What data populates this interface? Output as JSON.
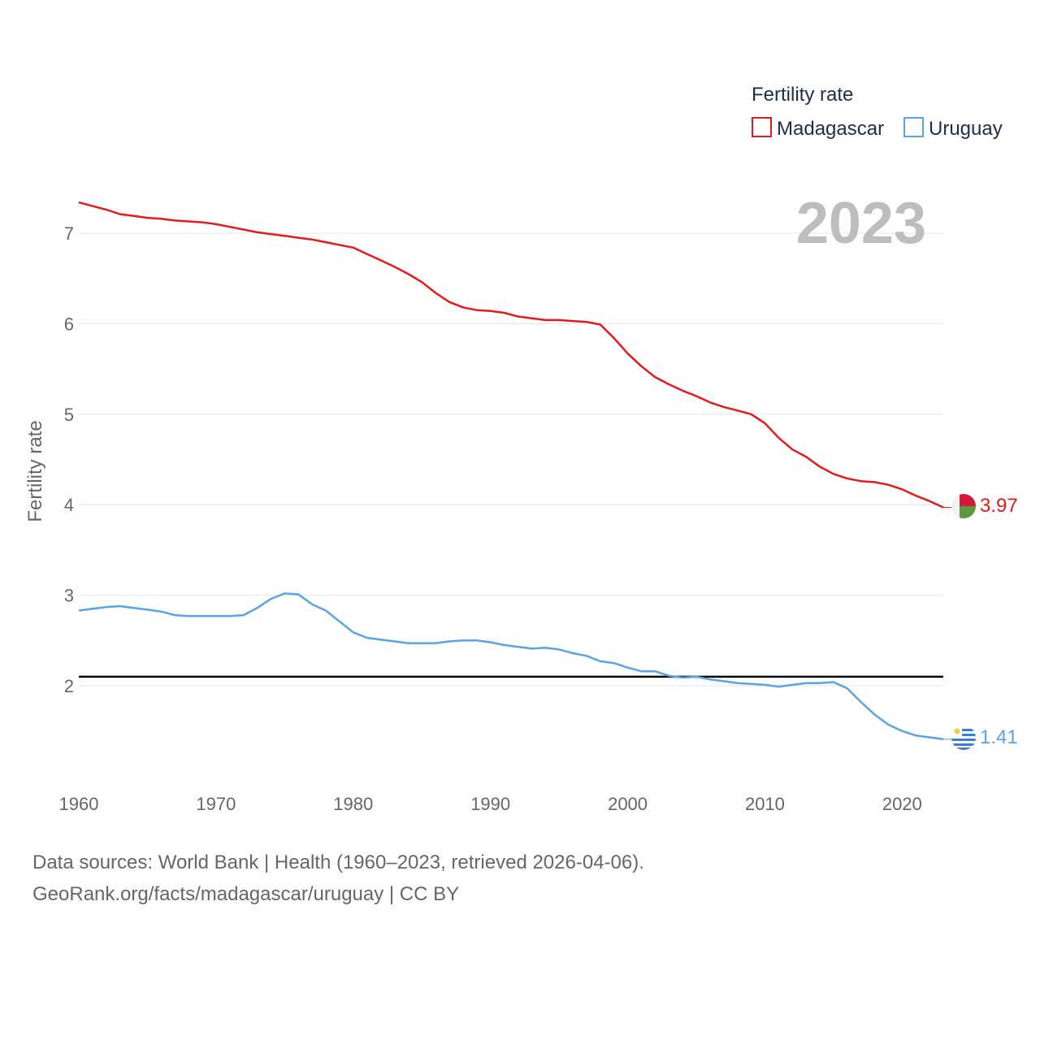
{
  "chart_data": {
    "type": "line",
    "ylabel": "Fertility rate",
    "xlabel": "",
    "xlim": [
      1960,
      2023
    ],
    "ylim": [
      1.0,
      7.6
    ],
    "yticks": [
      2,
      3,
      4,
      5,
      6,
      7
    ],
    "xticks": [
      1960,
      1970,
      1980,
      1990,
      2000,
      2010,
      2020
    ],
    "legend": {
      "title": "Fertility rate",
      "position": "top-right"
    },
    "year_label": "2023",
    "reference_line": {
      "y": 2.1,
      "color": "#000000"
    },
    "x": [
      1960,
      1961,
      1962,
      1963,
      1964,
      1965,
      1966,
      1967,
      1968,
      1969,
      1970,
      1971,
      1972,
      1973,
      1974,
      1975,
      1976,
      1977,
      1978,
      1979,
      1980,
      1981,
      1982,
      1983,
      1984,
      1985,
      1986,
      1987,
      1988,
      1989,
      1990,
      1991,
      1992,
      1993,
      1994,
      1995,
      1996,
      1997,
      1998,
      1999,
      2000,
      2001,
      2002,
      2003,
      2004,
      2005,
      2006,
      2007,
      2008,
      2009,
      2010,
      2011,
      2012,
      2013,
      2014,
      2015,
      2016,
      2017,
      2018,
      2019,
      2020,
      2021,
      2022,
      2023
    ],
    "series": [
      {
        "name": "Madagascar",
        "color": "#e41a1c",
        "end_label": "3.97",
        "flag": "madagascar",
        "values": [
          7.34,
          7.3,
          7.26,
          7.21,
          7.19,
          7.17,
          7.16,
          7.14,
          7.13,
          7.12,
          7.1,
          7.07,
          7.04,
          7.01,
          6.99,
          6.97,
          6.95,
          6.93,
          6.9,
          6.87,
          6.84,
          6.77,
          6.7,
          6.63,
          6.55,
          6.46,
          6.34,
          6.24,
          6.18,
          6.15,
          6.14,
          6.12,
          6.08,
          6.06,
          6.04,
          6.04,
          6.03,
          6.02,
          5.99,
          5.84,
          5.67,
          5.53,
          5.41,
          5.33,
          5.26,
          5.2,
          5.13,
          5.08,
          5.04,
          5.0,
          4.9,
          4.74,
          4.61,
          4.53,
          4.42,
          4.34,
          4.29,
          4.26,
          4.25,
          4.22,
          4.17,
          4.1,
          4.04,
          3.97
        ]
      },
      {
        "name": "Uruguay",
        "color": "#5aa3e8",
        "end_label": "1.41",
        "flag": "uruguay",
        "values": [
          2.83,
          2.85,
          2.87,
          2.88,
          2.86,
          2.84,
          2.82,
          2.78,
          2.77,
          2.77,
          2.77,
          2.77,
          2.78,
          2.86,
          2.96,
          3.02,
          3.01,
          2.9,
          2.83,
          2.71,
          2.59,
          2.53,
          2.51,
          2.49,
          2.47,
          2.47,
          2.47,
          2.49,
          2.5,
          2.5,
          2.48,
          2.45,
          2.43,
          2.41,
          2.42,
          2.4,
          2.36,
          2.33,
          2.27,
          2.25,
          2.2,
          2.16,
          2.16,
          2.11,
          2.09,
          2.1,
          2.07,
          2.05,
          2.03,
          2.02,
          2.01,
          1.99,
          2.01,
          2.03,
          2.03,
          2.04,
          1.97,
          1.82,
          1.68,
          1.57,
          1.5,
          1.45,
          1.43,
          1.41
        ]
      }
    ]
  },
  "footer": {
    "line1": "Data sources: World Bank | Health (1960–2023, retrieved 2026-04-06).",
    "line2": "GeoRank.org/facts/madagascar/uruguay | CC BY"
  }
}
